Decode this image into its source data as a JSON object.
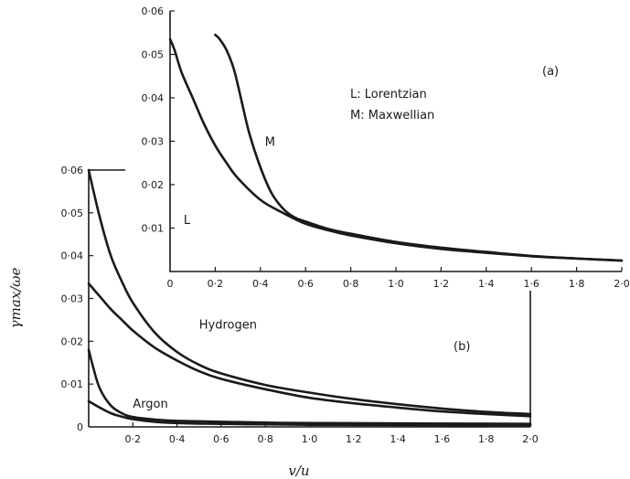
{
  "chart_data": [
    {
      "id": "a",
      "type": "line",
      "panel_label": "(a)",
      "legend_lines": [
        "L: Lorentzian",
        "M: Maxwellian"
      ],
      "xlim": [
        0,
        2.0
      ],
      "ylim": [
        0,
        0.06
      ],
      "x_ticks": [
        "0",
        "0·2",
        "0·4",
        "0·6",
        "0·8",
        "1·0",
        "1·2",
        "1·4",
        "1·6",
        "1·8",
        "2·0"
      ],
      "y_ticks": [
        "0·01",
        "0·02",
        "0·03",
        "0·04",
        "0·05",
        "0·06"
      ],
      "series": [
        {
          "name": "L",
          "label_at": [
            0.06,
            0.011
          ],
          "x": [
            0,
            0.02,
            0.05,
            0.1,
            0.15,
            0.2,
            0.25,
            0.3,
            0.4,
            0.5,
            0.6,
            0.7,
            0.8,
            1.0,
            1.2,
            1.4,
            1.6,
            1.8,
            2.0
          ],
          "y": [
            0.0535,
            0.051,
            0.046,
            0.04,
            0.034,
            0.029,
            0.025,
            0.0215,
            0.0165,
            0.0135,
            0.011,
            0.0095,
            0.0083,
            0.0065,
            0.0052,
            0.0043,
            0.0035,
            0.003,
            0.0025
          ]
        },
        {
          "name": "M",
          "label_at": [
            0.42,
            0.029
          ],
          "x": [
            0.2,
            0.22,
            0.25,
            0.28,
            0.3,
            0.32,
            0.35,
            0.4,
            0.45,
            0.5,
            0.55,
            0.6,
            0.7,
            0.8,
            1.0,
            1.2,
            1.4,
            1.6,
            1.8,
            2.0
          ],
          "y": [
            0.0545,
            0.0535,
            0.051,
            0.047,
            0.043,
            0.0385,
            0.032,
            0.024,
            0.018,
            0.0145,
            0.0125,
            0.0115,
            0.0098,
            0.0087,
            0.0068,
            0.0055,
            0.0045,
            0.0036,
            0.003,
            0.0025
          ]
        }
      ]
    },
    {
      "id": "b",
      "type": "line",
      "panel_label": "(b)",
      "xlabel": "v/u",
      "ylabel": "γmax/ωe",
      "xlim": [
        0,
        2.0
      ],
      "ylim": [
        0,
        0.06
      ],
      "x_ticks": [
        "0·2",
        "0·4",
        "0·6",
        "0·8",
        "1·0",
        "1·2",
        "1·4",
        "1·6",
        "1·8",
        "2·0"
      ],
      "y_ticks": [
        "0",
        "0·01",
        "0·02",
        "0·03",
        "0·04",
        "0·05",
        "0·06"
      ],
      "group_labels": [
        {
          "text": "Hydrogen",
          "at": [
            0.5,
            0.023
          ]
        },
        {
          "text": "Argon",
          "at": [
            0.2,
            0.0045
          ]
        }
      ],
      "series": [
        {
          "x": [
            0,
            0.05,
            0.1,
            0.15,
            0.2,
            0.3,
            0.4,
            0.5,
            0.6,
            0.8,
            1.0,
            1.2,
            1.4,
            1.6,
            1.8,
            2.0
          ],
          "y": [
            0.06,
            0.049,
            0.04,
            0.034,
            0.029,
            0.022,
            0.0175,
            0.0145,
            0.0125,
            0.0098,
            0.008,
            0.0065,
            0.0053,
            0.0043,
            0.0035,
            0.003
          ]
        },
        {
          "x": [
            0,
            0.05,
            0.1,
            0.15,
            0.2,
            0.3,
            0.4,
            0.5,
            0.6,
            0.8,
            1.0,
            1.2,
            1.4,
            1.6,
            1.8,
            2.0
          ],
          "y": [
            0.0335,
            0.0305,
            0.0275,
            0.025,
            0.0225,
            0.0185,
            0.0155,
            0.013,
            0.0112,
            0.0088,
            0.0068,
            0.0055,
            0.0045,
            0.0036,
            0.003,
            0.0025
          ]
        },
        {
          "x": [
            0,
            0.02,
            0.05,
            0.1,
            0.15,
            0.2,
            0.3,
            0.4,
            0.6,
            0.8,
            1.0,
            1.5,
            2.0
          ],
          "y": [
            0.018,
            0.014,
            0.009,
            0.005,
            0.0032,
            0.0023,
            0.0017,
            0.0014,
            0.0012,
            0.001,
            0.0009,
            0.0008,
            0.0007
          ]
        },
        {
          "x": [
            0,
            0.05,
            0.1,
            0.15,
            0.2,
            0.3,
            0.4,
            0.6,
            0.8,
            1.0,
            1.5,
            2.0
          ],
          "y": [
            0.006,
            0.0045,
            0.0032,
            0.0024,
            0.0018,
            0.0012,
            0.0009,
            0.0007,
            0.0006,
            0.0005,
            0.0004,
            0.0004
          ]
        }
      ]
    }
  ]
}
